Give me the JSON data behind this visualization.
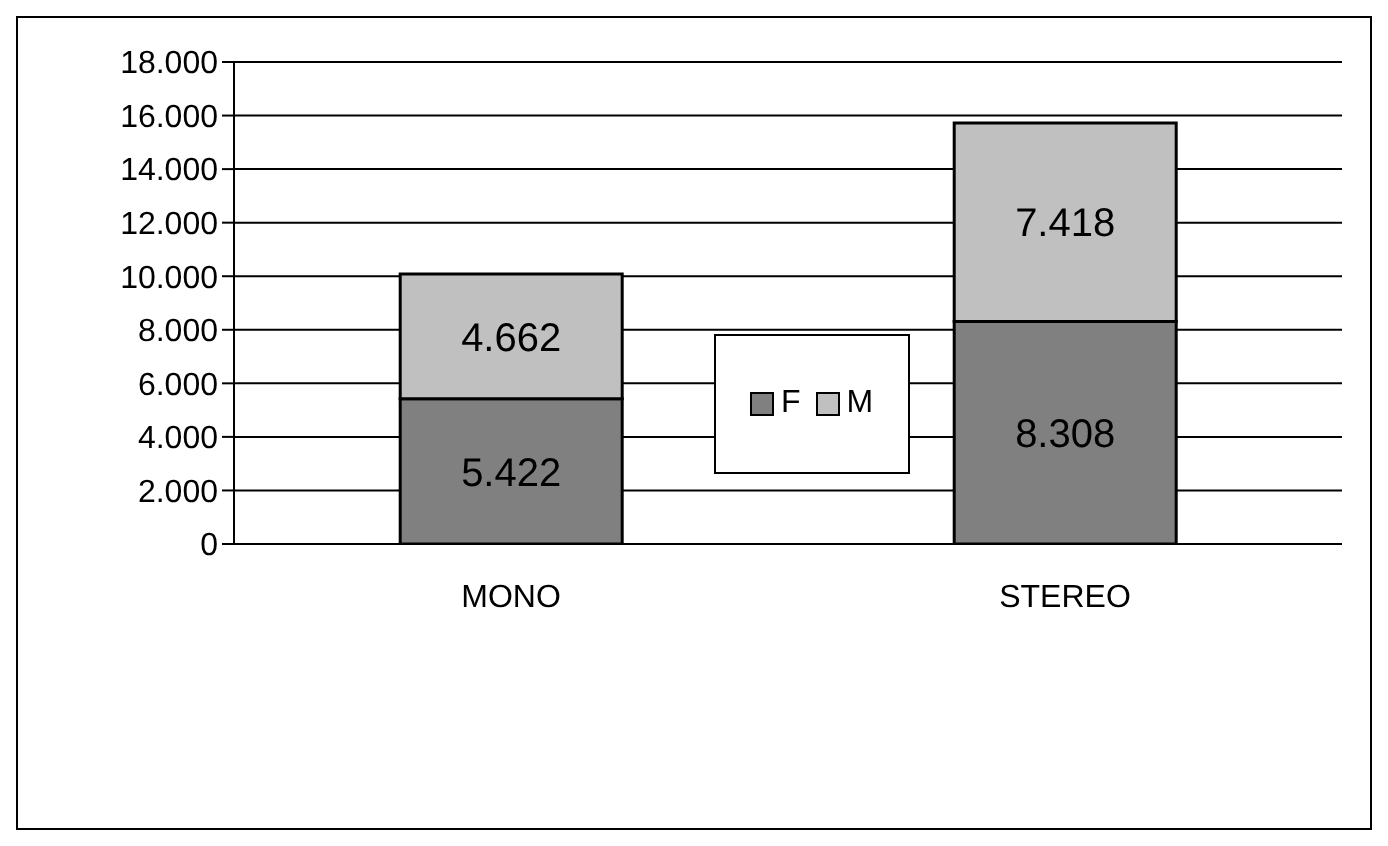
{
  "chart_data": {
    "type": "bar",
    "stacked": true,
    "categories": [
      "MONO",
      "STEREO"
    ],
    "series": [
      {
        "name": "F",
        "color": "#808080",
        "values": [
          5422,
          8308
        ],
        "value_labels": [
          "5.422",
          "8.308"
        ]
      },
      {
        "name": "M",
        "color": "#c0c0c0",
        "values": [
          4662,
          7418
        ],
        "value_labels": [
          "4.662",
          "7.418"
        ]
      }
    ],
    "ylim": [
      0,
      18000
    ],
    "yticks": [
      {
        "value": 0,
        "label": "0"
      },
      {
        "value": 2000,
        "label": "2.000"
      },
      {
        "value": 4000,
        "label": "4.000"
      },
      {
        "value": 6000,
        "label": "6.000"
      },
      {
        "value": 8000,
        "label": "8.000"
      },
      {
        "value": 10000,
        "label": "10.000"
      },
      {
        "value": 12000,
        "label": "12.000"
      },
      {
        "value": 14000,
        "label": "14.000"
      },
      {
        "value": 16000,
        "label": "16.000"
      },
      {
        "value": 18000,
        "label": "18.000"
      }
    ],
    "grid": "y",
    "legend": "center"
  }
}
